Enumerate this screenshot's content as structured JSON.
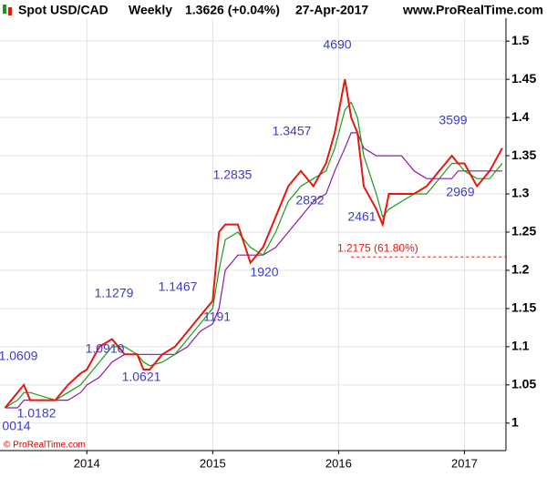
{
  "header": {
    "symbol": "Spot USD/CAD",
    "period": "Weekly",
    "quote": "1.3626 (+0.04%)",
    "date": "27-Apr-2017",
    "site": "www.ProRealTime.com"
  },
  "footer": "© ProRealTime.com",
  "chart_data": {
    "type": "line",
    "x": [
      2013.35,
      2013.45,
      2013.5,
      2013.55,
      2013.65,
      2013.75,
      2013.85,
      2013.95,
      2014.0,
      2014.1,
      2014.2,
      2014.3,
      2014.4,
      2014.45,
      2014.5,
      2014.6,
      2014.7,
      2014.8,
      2014.9,
      2015.0,
      2015.05,
      2015.1,
      2015.2,
      2015.3,
      2015.4,
      2015.5,
      2015.6,
      2015.7,
      2015.8,
      2015.9,
      2015.97,
      2016.05,
      2016.1,
      2016.15,
      2016.2,
      2016.3,
      2016.35,
      2016.4,
      2016.5,
      2016.6,
      2016.7,
      2016.8,
      2016.85,
      2016.9,
      2016.95,
      2017.0,
      2017.1,
      2017.2,
      2017.3
    ],
    "series": [
      {
        "color": "#e8160c",
        "values": [
          1.02,
          1.04,
          1.05,
          1.03,
          1.03,
          1.03,
          1.05,
          1.065,
          1.07,
          1.1,
          1.11,
          1.09,
          1.09,
          1.07,
          1.07,
          1.09,
          1.1,
          1.12,
          1.14,
          1.16,
          1.25,
          1.26,
          1.26,
          1.21,
          1.23,
          1.27,
          1.31,
          1.33,
          1.31,
          1.34,
          1.38,
          1.45,
          1.4,
          1.38,
          1.31,
          1.28,
          1.26,
          1.3,
          1.3,
          1.3,
          1.31,
          1.33,
          1.34,
          1.35,
          1.34,
          1.34,
          1.31,
          1.33,
          1.36
        ]
      },
      {
        "color": "#1a9a1a",
        "values": [
          1.02,
          1.03,
          1.04,
          1.04,
          1.035,
          1.03,
          1.04,
          1.05,
          1.06,
          1.08,
          1.1,
          1.1,
          1.09,
          1.08,
          1.075,
          1.08,
          1.09,
          1.11,
          1.13,
          1.15,
          1.2,
          1.24,
          1.25,
          1.23,
          1.22,
          1.25,
          1.29,
          1.31,
          1.32,
          1.33,
          1.36,
          1.41,
          1.42,
          1.4,
          1.35,
          1.3,
          1.27,
          1.28,
          1.29,
          1.3,
          1.3,
          1.32,
          1.33,
          1.34,
          1.34,
          1.33,
          1.32,
          1.32,
          1.34
        ]
      },
      {
        "color": "#8a1aa8",
        "values": [
          1.02,
          1.02,
          1.03,
          1.03,
          1.03,
          1.03,
          1.03,
          1.04,
          1.05,
          1.06,
          1.08,
          1.09,
          1.09,
          1.09,
          1.09,
          1.09,
          1.09,
          1.1,
          1.12,
          1.13,
          1.15,
          1.2,
          1.22,
          1.22,
          1.22,
          1.23,
          1.25,
          1.27,
          1.29,
          1.3,
          1.33,
          1.36,
          1.38,
          1.38,
          1.36,
          1.35,
          1.35,
          1.35,
          1.35,
          1.33,
          1.32,
          1.32,
          1.32,
          1.32,
          1.33,
          1.33,
          1.33,
          1.33,
          1.33
        ]
      }
    ],
    "xlim": [
      2013.31,
      2017.33
    ],
    "xticks": [
      2014,
      2015,
      2016,
      2017
    ],
    "ylim": [
      0.964,
      1.53
    ],
    "yticks": [
      1,
      1.05,
      1.1,
      1.15,
      1.2,
      1.25,
      1.3,
      1.35,
      1.4,
      1.45,
      1.5
    ],
    "grid": true,
    "retracement": {
      "value": 1.2175,
      "label": "1.2175 (61.80%)",
      "color": "#e8160c"
    },
    "annotations": [
      "4690",
      "3599",
      "1.3457",
      "1.2835",
      "2832",
      "2461",
      "2969",
      "1920",
      "1.1279",
      "1.1467",
      "1191",
      "1.0910",
      "1.0621",
      "1.0609",
      "1.0182",
      "0014"
    ]
  }
}
